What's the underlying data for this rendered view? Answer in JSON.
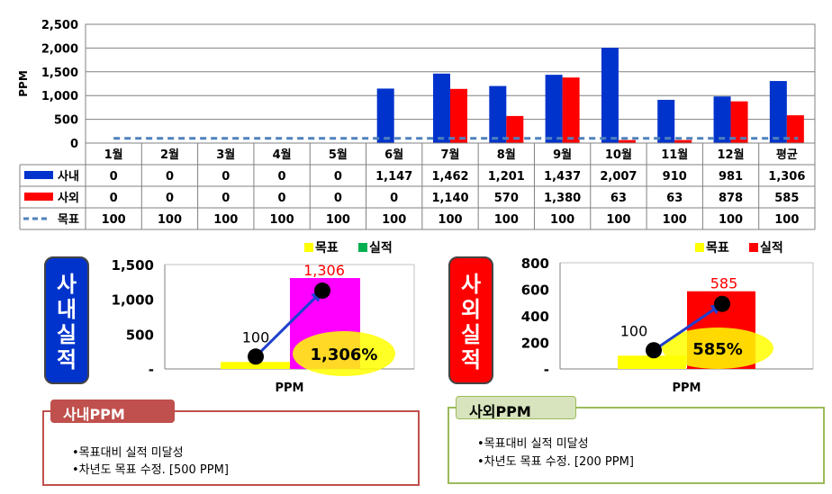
{
  "chart_data": [
    {
      "type": "bar",
      "ylabel": "PPM",
      "ylim": [
        0,
        2500
      ],
      "yticks": [
        "2,500",
        "2,000",
        "1,500",
        "1,000",
        "500",
        "0"
      ],
      "ytick_values": [
        2500,
        2000,
        1500,
        1000,
        500,
        0
      ],
      "categories": [
        "1월",
        "2월",
        "3월",
        "4월",
        "5월",
        "6월",
        "7월",
        "8월",
        "9월",
        "10월",
        "11월",
        "12월",
        "평균"
      ],
      "series": [
        {
          "name": "사내",
          "color": "#0033cc",
          "values": [
            0,
            0,
            0,
            0,
            0,
            1147,
            1462,
            1201,
            1437,
            2007,
            910,
            981,
            1306
          ],
          "labels": [
            "0",
            "0",
            "0",
            "0",
            "0",
            "1,147",
            "1,462",
            "1,201",
            "1,437",
            "2,007",
            "910",
            "981",
            "1,306"
          ]
        },
        {
          "name": "사외",
          "color": "#ff0000",
          "values": [
            0,
            0,
            0,
            0,
            0,
            0,
            1140,
            570,
            1380,
            63,
            63,
            878,
            585
          ],
          "labels": [
            "0",
            "0",
            "0",
            "0",
            "0",
            "0",
            "1,140",
            "570",
            "1,380",
            "63",
            "63",
            "878",
            "585"
          ]
        },
        {
          "name": "목표",
          "type": "line",
          "color": "#4f81bd",
          "values": [
            100,
            100,
            100,
            100,
            100,
            100,
            100,
            100,
            100,
            100,
            100,
            100,
            100
          ],
          "labels": [
            "100",
            "100",
            "100",
            "100",
            "100",
            "100",
            "100",
            "100",
            "100",
            "100",
            "100",
            "100",
            "100"
          ]
        }
      ],
      "grid": true,
      "legend": "data-table"
    },
    {
      "type": "bar",
      "side_label": "사내실적",
      "side_color": "#0033cc",
      "ylim": [
        0,
        1500
      ],
      "yticks": [
        "1,500",
        "1,000",
        "500",
        "-"
      ],
      "ytick_values": [
        1500,
        1000,
        500,
        0
      ],
      "xlabel": "PPM",
      "series": [
        {
          "name": "목표",
          "color": "#ffff00",
          "value": 100,
          "label": "100"
        },
        {
          "name": "실적",
          "color": "#ff00ff",
          "value": 1306,
          "label": "1,306"
        }
      ],
      "legend_colors": [
        "#ffff00",
        "#00b050"
      ],
      "percent_label": "1,306%"
    },
    {
      "type": "bar",
      "side_label": "사외실적",
      "side_color": "#ff0000",
      "ylim": [
        0,
        800
      ],
      "yticks": [
        "800",
        "600",
        "400",
        "200",
        "-"
      ],
      "ytick_values": [
        800,
        600,
        400,
        200,
        0
      ],
      "xlabel": "PPM",
      "series": [
        {
          "name": "목표",
          "color": "#ffff00",
          "value": 100,
          "label": "100"
        },
        {
          "name": "실적",
          "color": "#ff0000",
          "value": 585,
          "label": "585"
        }
      ],
      "legend_colors": [
        "#ffff00",
        "#ff0000"
      ],
      "percent_label": "585%"
    }
  ],
  "notes": {
    "inhouse": {
      "title": "사내PPM",
      "border_color": "#c0504d",
      "tab_color": "#c0504d",
      "lines": [
        "•목표대비 실적 미달성",
        "•차년도 목표 수정. [500 PPM]"
      ]
    },
    "outside": {
      "title": "사외PPM",
      "border_color": "#9bbb59",
      "tab_color": "#d7e4bd",
      "lines": [
        "•목표대비 실적 미달성",
        "•차년도 목표 수정. [200 PPM]"
      ]
    }
  }
}
